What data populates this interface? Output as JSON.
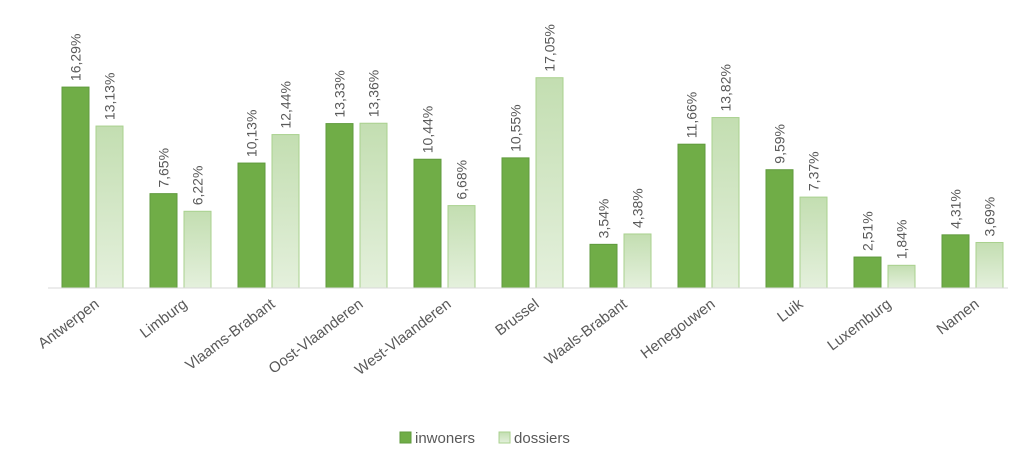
{
  "chart_data": {
    "type": "bar",
    "categories": [
      "Antwerpen",
      "Limburg",
      "Vlaams-Brabant",
      "Oost-Vlaanderen",
      "West-Vlaanderen",
      "Brussel",
      "Waals-Brabant",
      "Henegouwen",
      "Luik",
      "Luxemburg",
      "Namen"
    ],
    "series": [
      {
        "name": "inwoners",
        "color": "#70ad47",
        "values": [
          16.29,
          7.65,
          10.13,
          13.33,
          10.44,
          10.55,
          3.54,
          11.66,
          9.59,
          2.51,
          4.31
        ],
        "value_labels": [
          "16,29%",
          "7,65%",
          "10,13%",
          "13,33%",
          "10,44%",
          "10,55%",
          "3,54%",
          "11,66%",
          "9,59%",
          "2,51%",
          "4,31%"
        ]
      },
      {
        "name": "dossiers",
        "color": "#d0e6c3",
        "values": [
          13.13,
          6.22,
          12.44,
          13.36,
          6.68,
          17.05,
          4.38,
          13.82,
          7.37,
          1.84,
          3.69
        ],
        "value_labels": [
          "13,13%",
          "6,22%",
          "12,44%",
          "13,36%",
          "6,68%",
          "17,05%",
          "4,38%",
          "13,82%",
          "7,37%",
          "1,84%",
          "3,69%"
        ]
      }
    ],
    "ylim": [
      0,
      18
    ],
    "legend": "bottom"
  }
}
